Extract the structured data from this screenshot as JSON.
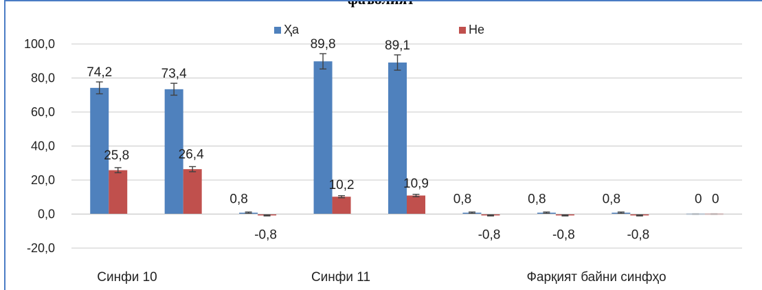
{
  "chart_data": {
    "type": "bar",
    "title": "фаъолият",
    "ylim": [
      -20,
      100
    ],
    "yticks": [
      "100,0",
      "80,0",
      "60,0",
      "40,0",
      "20,0",
      "0,0",
      "-20,0"
    ],
    "ytick_values": [
      100,
      80,
      60,
      40,
      20,
      0,
      -20
    ],
    "grid": true,
    "legend_position": "top",
    "category_labels": [
      "Синфи 10",
      "Синфи 11",
      "Фарқият байни синфҳо"
    ],
    "groups": 9,
    "series": [
      {
        "name": "Ҳа",
        "color": "#4f81bd",
        "values": [
          74.2,
          73.4,
          0.8,
          89.8,
          89.1,
          0.8,
          0.8,
          0.8,
          0
        ],
        "labels": [
          "74,2",
          "73,4",
          "0,8",
          "89,8",
          "89,1",
          "0,8",
          "0,8",
          "0,8",
          "0"
        ],
        "errors": [
          3.5,
          3.5,
          0.4,
          4.5,
          4.5,
          0.4,
          0.4,
          0.4,
          0
        ]
      },
      {
        "name": "Не",
        "color": "#c0504d",
        "values": [
          25.8,
          26.4,
          -0.8,
          10.2,
          10.9,
          -0.8,
          -0.8,
          -0.8,
          0
        ],
        "labels": [
          "25,8",
          "26,4",
          "-0,8",
          "10,2",
          "10,9",
          "-0,8",
          "-0,8",
          "-0,8",
          "0"
        ],
        "errors": [
          1.5,
          1.5,
          0.3,
          0.6,
          0.7,
          0.3,
          0.3,
          0.3,
          0
        ]
      }
    ]
  }
}
